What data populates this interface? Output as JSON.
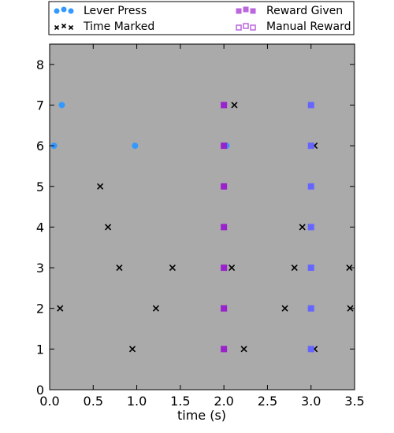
{
  "chart_data": {
    "type": "scatter",
    "title": "",
    "xlabel": "time (s)",
    "ylabel": "",
    "xlim": [
      0.0,
      3.5
    ],
    "ylim": [
      0,
      8.5
    ],
    "x_ticks": [
      "0.0",
      "0.5",
      "1.0",
      "1.5",
      "2.0",
      "2.5",
      "3.0",
      "3.5"
    ],
    "y_ticks": [
      "0",
      "1",
      "2",
      "3",
      "4",
      "5",
      "6",
      "7",
      "8"
    ],
    "grid": false,
    "legend_position": "top",
    "plot_background": "#aaaaaa",
    "series": [
      {
        "name": "Lever Press",
        "marker": "circle",
        "color": "#3399ff",
        "points": [
          [
            0.14,
            7
          ],
          [
            0.05,
            6
          ],
          [
            0.98,
            6
          ],
          [
            2.03,
            6
          ]
        ]
      },
      {
        "name": "Time Marked",
        "marker": "x",
        "color": "#000000",
        "points": [
          [
            2.12,
            7
          ],
          [
            3.04,
            6
          ],
          [
            0.58,
            5
          ],
          [
            0.67,
            4
          ],
          [
            2.9,
            4
          ],
          [
            0.8,
            3
          ],
          [
            1.41,
            3
          ],
          [
            2.09,
            3
          ],
          [
            2.81,
            3
          ],
          [
            3.44,
            3
          ],
          [
            0.12,
            2
          ],
          [
            1.22,
            2
          ],
          [
            2.0,
            2
          ],
          [
            2.7,
            2
          ],
          [
            3.45,
            2
          ],
          [
            0.95,
            1
          ],
          [
            2.23,
            1
          ],
          [
            3.04,
            1
          ]
        ]
      },
      {
        "name": "Reward Given",
        "marker": "square",
        "color": "#9922cc",
        "points": [
          [
            2.0,
            7
          ],
          [
            2.0,
            6
          ],
          [
            2.0,
            5
          ],
          [
            2.0,
            4
          ],
          [
            2.0,
            3
          ],
          [
            2.0,
            2
          ],
          [
            2.0,
            1
          ]
        ]
      },
      {
        "name": "Manual Reward",
        "marker": "square",
        "color": "#6666ff",
        "points": [
          [
            3.0,
            7
          ],
          [
            3.0,
            6
          ],
          [
            3.0,
            5
          ],
          [
            3.0,
            4
          ],
          [
            3.0,
            3
          ],
          [
            3.0,
            2
          ],
          [
            3.0,
            1
          ]
        ]
      }
    ],
    "legend": [
      {
        "label": "Lever Press",
        "marker": "circle-filled",
        "color": "#3399ff"
      },
      {
        "label": "Reward Given",
        "marker": "square-filled",
        "color": "#bb66dd"
      },
      {
        "label": "Time Marked",
        "marker": "x",
        "color": "#000000"
      },
      {
        "label": "Manual Reward",
        "marker": "square-open",
        "color": "#bb66dd"
      }
    ]
  }
}
